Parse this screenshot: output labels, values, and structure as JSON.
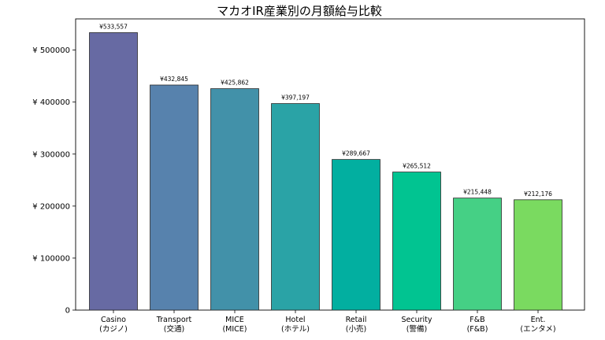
{
  "chart_data": {
    "type": "bar",
    "title": "マカオIR産業別の月額給与比較",
    "xlabel": "",
    "ylabel": "",
    "ylim": [
      0,
      560000
    ],
    "yticks": [
      0,
      100000,
      200000,
      300000,
      400000,
      500000
    ],
    "ytick_labels": [
      "0",
      "¥ 100000",
      "¥ 200000",
      "¥ 300000",
      "¥ 400000",
      "¥ 500000"
    ],
    "categories": [
      {
        "line1": "Casino",
        "line2": "(カジノ)"
      },
      {
        "line1": "Transport",
        "line2": "(交通)"
      },
      {
        "line1": "MICE",
        "line2": "(MICE)"
      },
      {
        "line1": "Hotel",
        "line2": "(ホテル)"
      },
      {
        "line1": "Retail",
        "line2": "(小売)"
      },
      {
        "line1": "Security",
        "line2": "(警備)"
      },
      {
        "line1": "F&B",
        "line2": "(F&B)"
      },
      {
        "line1": "Ent.",
        "line2": "(エンタメ)"
      }
    ],
    "values": [
      533557,
      432845,
      425862,
      397197,
      289667,
      265512,
      215448,
      212176
    ],
    "value_labels": [
      "¥533,557",
      "¥432,845",
      "¥425,862",
      "¥397,197",
      "¥289,667",
      "¥265,512",
      "¥215,448",
      "¥212,176"
    ],
    "colors": [
      "#676aa3",
      "#5782ad",
      "#4291a9",
      "#2aa3a6",
      "#02afa0",
      "#01c491",
      "#45d085",
      "#7ada60"
    ],
    "grid": false
  }
}
